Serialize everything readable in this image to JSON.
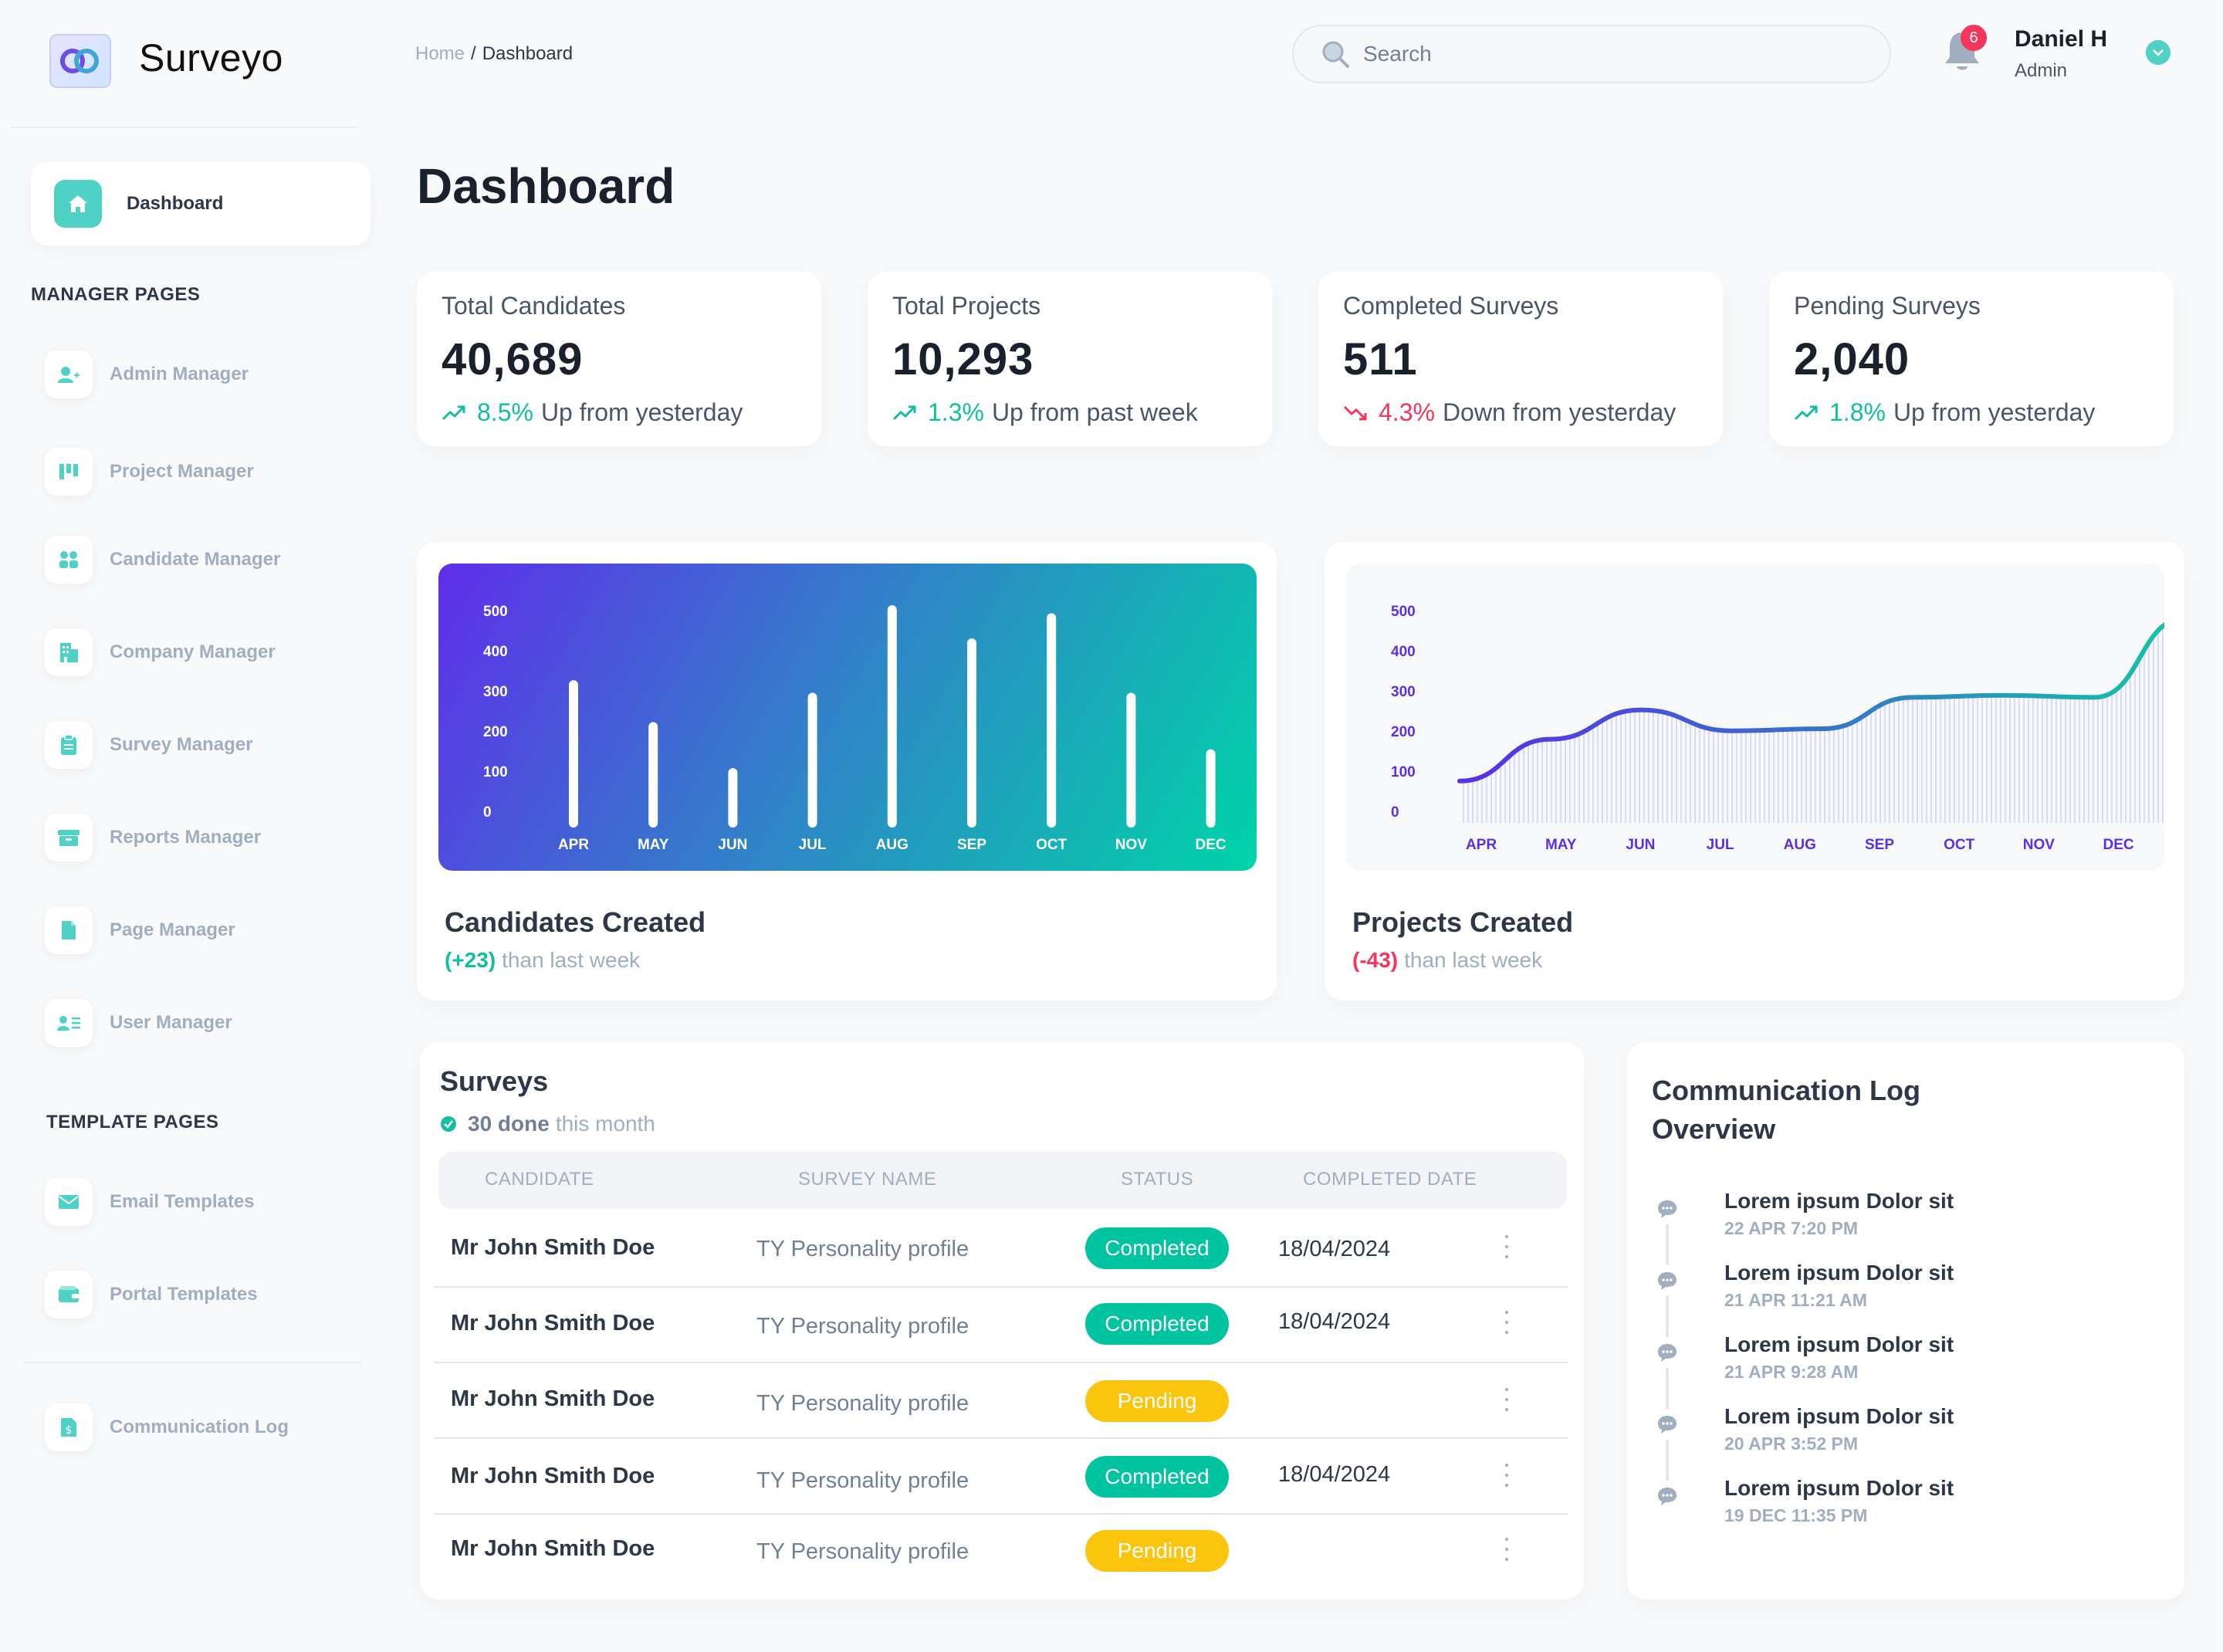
{
  "app": {
    "name": "Surveyo"
  },
  "breadcrumb": {
    "home": "Home",
    "separator": "/",
    "current": "Dashboard"
  },
  "search": {
    "placeholder": "Search"
  },
  "notifications": {
    "count": "6"
  },
  "user": {
    "name": "Daniel H",
    "role": "Admin"
  },
  "sidebar": {
    "active": {
      "label": "Dashboard",
      "icon": "home-icon"
    },
    "manager_title": "MANAGER PAGES",
    "manager_items": [
      {
        "label": "Admin Manager",
        "icon": "user-plus-icon"
      },
      {
        "label": "Project Manager",
        "icon": "kanban-icon"
      },
      {
        "label": "Candidate Manager",
        "icon": "users-icon"
      },
      {
        "label": "Company Manager",
        "icon": "building-icon"
      },
      {
        "label": "Survey Manager",
        "icon": "clipboard-icon"
      },
      {
        "label": "Reports Manager",
        "icon": "archive-icon"
      },
      {
        "label": "Page Manager",
        "icon": "file-icon"
      },
      {
        "label": "User Manager",
        "icon": "id-card-icon"
      }
    ],
    "template_title": "TEMPLATE PAGES",
    "template_items": [
      {
        "label": "Email Templates",
        "icon": "mail-icon"
      },
      {
        "label": "Portal Templates",
        "icon": "wallet-icon"
      }
    ],
    "extra_items": [
      {
        "label": "Communication Log",
        "icon": "doc-dollar-icon"
      }
    ]
  },
  "page": {
    "title": "Dashboard"
  },
  "stats": [
    {
      "title": "Total Candidates",
      "value": "40,689",
      "change": "8.5%",
      "direction": "up",
      "text": "Up from yesterday"
    },
    {
      "title": "Total Projects",
      "value": "10,293",
      "change": "1.3%",
      "direction": "up",
      "text": "Up from past week"
    },
    {
      "title": "Completed Surveys",
      "value": "511",
      "change": "4.3%",
      "direction": "down",
      "text": "Down from yesterday"
    },
    {
      "title": "Pending Surveys",
      "value": "2,040",
      "change": "1.8%",
      "direction": "up",
      "text": "Up from yesterday"
    }
  ],
  "chart_data": [
    {
      "type": "bar",
      "title": "Candidates Created",
      "subtitle_value": "(+23)",
      "subtitle_text": "than last week",
      "categories": [
        "APR",
        "MAY",
        "JUN",
        "JUL",
        "AUG",
        "SEP",
        "OCT",
        "NOV",
        "DEC"
      ],
      "values": [
        330,
        230,
        120,
        300,
        520,
        430,
        490,
        300,
        165
      ],
      "ylim": [
        0,
        500
      ],
      "yticks": [
        "500",
        "400",
        "300",
        "200",
        "100",
        "0"
      ],
      "grid": false,
      "colors": {
        "bg_start": "#5f2eea",
        "bg_mid": "#2f86c7",
        "bg_end": "#00d4a8",
        "bar": "#ffffff",
        "text": "#ffffff"
      }
    },
    {
      "type": "area",
      "title": "Projects Created",
      "subtitle_value": "(-43)",
      "subtitle_text": "than last week",
      "categories": [
        "APR",
        "MAY",
        "JUN",
        "JUL",
        "AUG",
        "SEP",
        "OCT",
        "NOV",
        "DEC"
      ],
      "values": [
        100,
        200,
        270,
        220,
        225,
        300,
        305,
        300,
        490
      ],
      "ylim": [
        0,
        500
      ],
      "yticks": [
        "500",
        "400",
        "300",
        "200",
        "100",
        "0"
      ],
      "grid": false,
      "colors": {
        "line_start": "#5b2ee8",
        "line_end": "#12c6a4",
        "text": "#5b2ee8"
      }
    }
  ],
  "surveys": {
    "title": "Surveys",
    "done_count": "30 done",
    "done_text": "this month",
    "columns": [
      "CANDIDATE",
      "SURVEY NAME",
      "STATUS",
      "COMPLETED DATE"
    ],
    "rows": [
      {
        "candidate": "Mr John Smith Doe",
        "survey": "TY Personality profile",
        "status": "Completed",
        "status_key": "completed",
        "date": "18/04/2024"
      },
      {
        "candidate": "Mr John Smith Doe",
        "survey": "TY Personality profile",
        "status": "Completed",
        "status_key": "completed",
        "date": "18/04/2024"
      },
      {
        "candidate": "Mr John Smith Doe",
        "survey": "TY Personality profile",
        "status": "Pending",
        "status_key": "pending",
        "date": ""
      },
      {
        "candidate": "Mr John Smith Doe",
        "survey": "TY Personality profile",
        "status": "Completed",
        "status_key": "completed",
        "date": "18/04/2024"
      },
      {
        "candidate": "Mr John Smith Doe",
        "survey": "TY Personality profile",
        "status": "Pending",
        "status_key": "pending",
        "date": ""
      }
    ]
  },
  "communication_log": {
    "title_line1": "Communication Log",
    "title_line2": "Overview",
    "items": [
      {
        "text": "Lorem ipsum Dolor sit",
        "time": "22 APR 7:20 PM"
      },
      {
        "text": "Lorem ipsum Dolor sit",
        "time": "21 APR 11:21 AM"
      },
      {
        "text": "Lorem ipsum Dolor sit",
        "time": "21 APR 9:28 AM"
      },
      {
        "text": "Lorem ipsum Dolor sit",
        "time": "20 APR 3:52 PM"
      },
      {
        "text": "Lorem ipsum Dolor sit",
        "time": "19 DEC 11:35 PM"
      }
    ]
  },
  "colors": {
    "accent": "#4fd1c5",
    "success": "#0fbfa0",
    "danger": "#f5365c",
    "warning": "#fbc50e",
    "muted": "#a0aec0"
  }
}
